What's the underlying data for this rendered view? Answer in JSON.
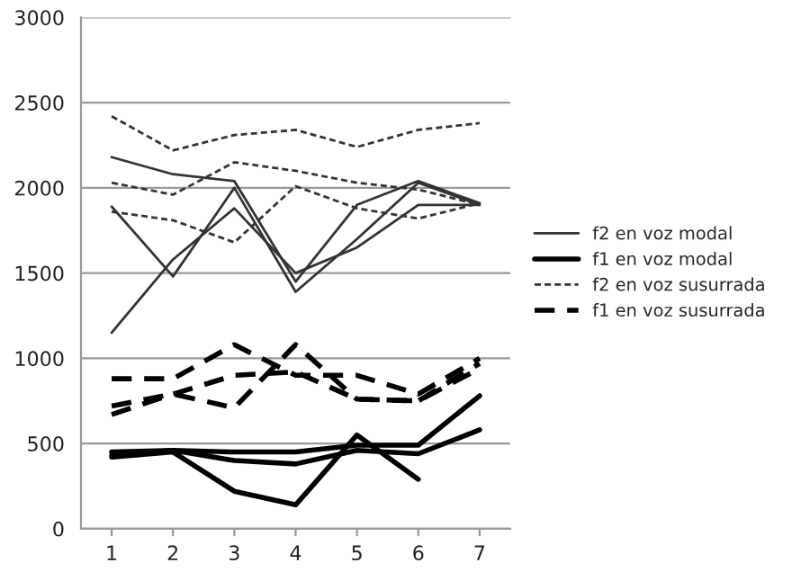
{
  "chart_data": {
    "type": "line",
    "categories": [
      "1",
      "2",
      "3",
      "4",
      "5",
      "6",
      "7"
    ],
    "ylim": [
      0,
      3000
    ],
    "yticks": [
      0,
      500,
      1000,
      1500,
      2000,
      2500,
      3000
    ],
    "grid": "y",
    "legend": "right",
    "marker": "none",
    "series": [
      {
        "name": "f2 en voz modal",
        "color": "#333333",
        "line_style": "solid",
        "values": [
          2180,
          2080,
          2040,
          1450,
          1900,
          2040,
          1910
        ]
      },
      {
        "color": "#333333",
        "line_style": "solid",
        "values": [
          1890,
          1480,
          2000,
          1390,
          1700,
          2030,
          1900
        ]
      },
      {
        "color": "#333333",
        "line_style": "solid",
        "values": [
          1150,
          1580,
          1880,
          1500,
          1650,
          1900,
          1900
        ]
      },
      {
        "name": "f1 en voz modal",
        "color": "#000000",
        "line_style": "solid",
        "values": [
          450,
          460,
          450,
          450,
          490,
          490,
          780
        ]
      },
      {
        "color": "#000000",
        "line_style": "solid",
        "values": [
          430,
          460,
          400,
          380,
          460,
          440,
          580
        ]
      },
      {
        "color": "#000000",
        "line_style": "solid",
        "values": [
          420,
          450,
          220,
          140,
          550,
          290,
          null
        ]
      },
      {
        "name": "f2 en voz susurrada",
        "color": "#333333",
        "line_style": "dotted",
        "values": [
          2420,
          2220,
          2310,
          2340,
          2240,
          2340,
          2380
        ]
      },
      {
        "color": "#333333",
        "line_style": "dotted",
        "values": [
          2030,
          1960,
          2150,
          2100,
          2030,
          1990,
          1900
        ]
      },
      {
        "color": "#333333",
        "line_style": "dotted",
        "values": [
          1860,
          1810,
          1680,
          2010,
          1880,
          1820,
          1910
        ]
      },
      {
        "name": "f1 en voz susurrada",
        "color": "#000000",
        "line_style": "dashed",
        "values": [
          880,
          880,
          1080,
          900,
          900,
          790,
          1000
        ]
      },
      {
        "color": "#000000",
        "line_style": "dashed",
        "values": [
          720,
          790,
          710,
          1080,
          760,
          750,
          970
        ]
      },
      {
        "color": "#000000",
        "line_style": "dashed",
        "values": [
          670,
          790,
          900,
          920,
          760,
          750,
          940
        ]
      }
    ]
  }
}
